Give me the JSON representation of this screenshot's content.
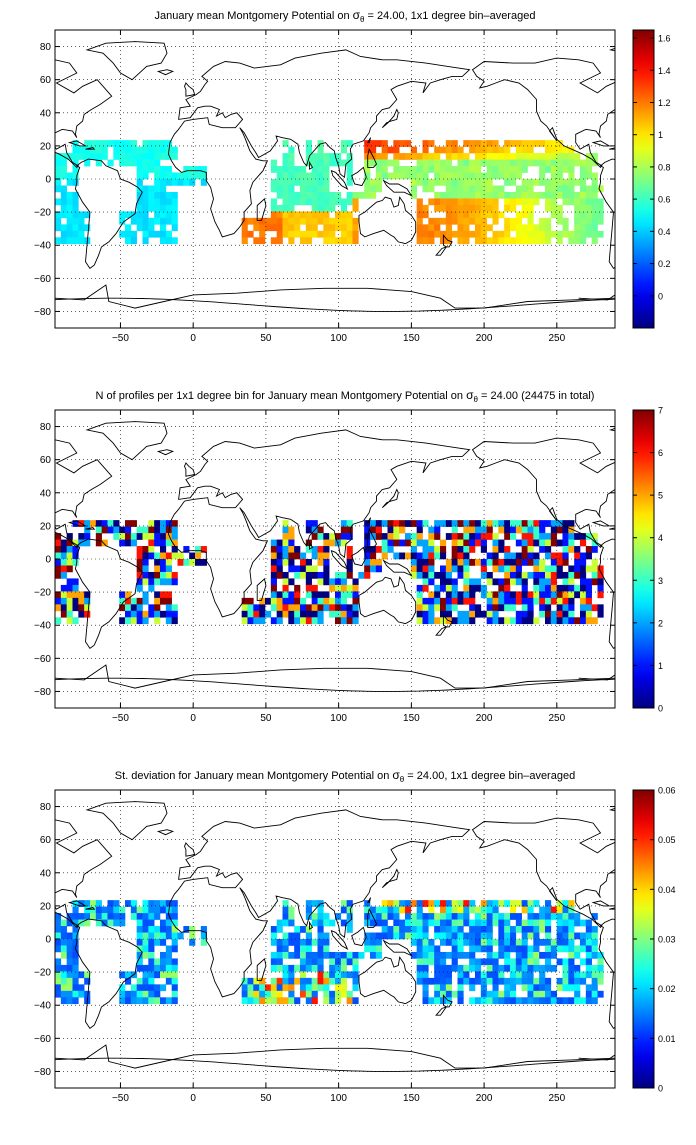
{
  "panels": [
    {
      "title_pre": "January mean Montgomery Potential on ",
      "title_post": " = 24.00, 1x1 degree bin–averaged",
      "cbar_ticks": [
        0,
        0.2,
        0.4,
        0.6,
        0.8,
        1,
        1.2,
        1.4,
        1.6
      ],
      "cbar_tick_labels": [
        "0",
        "0.2",
        "0.4",
        "0.6",
        "0.8",
        "1",
        "1.2",
        "1.4",
        "1.6"
      ],
      "cbar_range": [
        -0.2,
        1.65
      ],
      "field": "potential"
    },
    {
      "title_pre": "N of profiles per 1x1 degree bin for January mean Montgomery Potential on ",
      "title_post": " = 24.00 (24475 in total)",
      "cbar_ticks": [
        0,
        1,
        2,
        3,
        4,
        5,
        6,
        7
      ],
      "cbar_tick_labels": [
        "0",
        "1",
        "2",
        "3",
        "4",
        "5",
        "6",
        "7"
      ],
      "cbar_range": [
        0,
        7
      ],
      "field": "count"
    },
    {
      "title_pre": "St. deviation for January mean Montgomery Potential on ",
      "title_post": " = 24.00, 1x1 degree bin–averaged",
      "cbar_ticks": [
        0,
        0.01,
        0.02,
        0.03,
        0.04,
        0.05,
        0.06
      ],
      "cbar_tick_labels": [
        "0",
        "0.01",
        "0.02",
        "0.03",
        "0.04",
        "0.05",
        "0.06"
      ],
      "cbar_range": [
        0,
        0.06
      ],
      "field": "stdev"
    }
  ],
  "sigma_symbol": "σ",
  "sigma_subscript": "θ",
  "x_ticks": [
    -50,
    0,
    50,
    100,
    150,
    200,
    250
  ],
  "x_tick_labels": [
    "−50",
    "0",
    "50",
    "100",
    "150",
    "200",
    "250"
  ],
  "y_ticks": [
    80,
    60,
    40,
    20,
    0,
    -20,
    -40,
    -60,
    -80
  ],
  "y_tick_labels": [
    "80",
    "60",
    "40",
    "20",
    "0",
    "−20",
    "−40",
    "−60",
    "−80"
  ],
  "lon_range": [
    -95,
    290
  ],
  "lat_range": [
    -90,
    90
  ],
  "colormap": "jet",
  "grid": "dotted"
}
